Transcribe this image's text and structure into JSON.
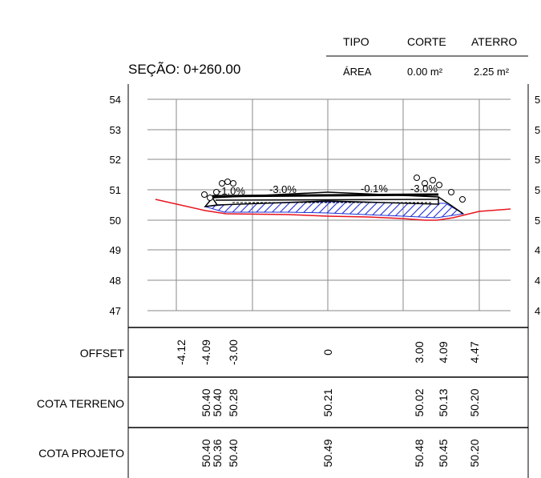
{
  "section_title": "SEÇÃO: 0+260.00",
  "summary_table": {
    "headers": {
      "type": "TIPO",
      "cut": "CORTE",
      "fill": "ATERRO"
    },
    "row": {
      "label": "ÁREA",
      "cut": "0.00 m²",
      "fill": "2.25 m²"
    }
  },
  "slope_labels": [
    "-3.0%",
    "-0.1%",
    "-3.0%"
  ],
  "slope_label_partial_left": "-1.0%",
  "elevation_axis": {
    "left_ticks": [
      54,
      53,
      52,
      51,
      50,
      49,
      48,
      47
    ],
    "right_ticks": [
      "5",
      "5",
      "5",
      "5",
      "5",
      "4",
      "4",
      "4"
    ],
    "range": [
      47,
      54
    ]
  },
  "row_labels": {
    "offset": "OFFSET",
    "terrain": "COTA TERRENO",
    "project": "COTA PROJETO"
  },
  "stations": [
    {
      "offset": "-4.12",
      "terrain": "",
      "project": ""
    },
    {
      "offset": "-4.09",
      "terrain": "50.40",
      "project": "50.40"
    },
    {
      "offset": "",
      "terrain": "50.40",
      "project": "50.36"
    },
    {
      "offset": "-3.00",
      "terrain": "50.28",
      "project": "50.40"
    },
    {
      "offset": "0",
      "terrain": "50.21",
      "project": "50.49"
    },
    {
      "offset": "3.00",
      "terrain": "50.02",
      "project": "50.48"
    },
    {
      "offset": "4.09",
      "terrain": "50.13",
      "project": "50.45"
    },
    {
      "offset": "4.47",
      "terrain": "50.20",
      "project": "50.20"
    }
  ],
  "colors": {
    "terrain_line": "#e8141e",
    "fill_hatch": "#1f2fd6",
    "grid": "#8a8a8a",
    "pavement": "#000000"
  }
}
